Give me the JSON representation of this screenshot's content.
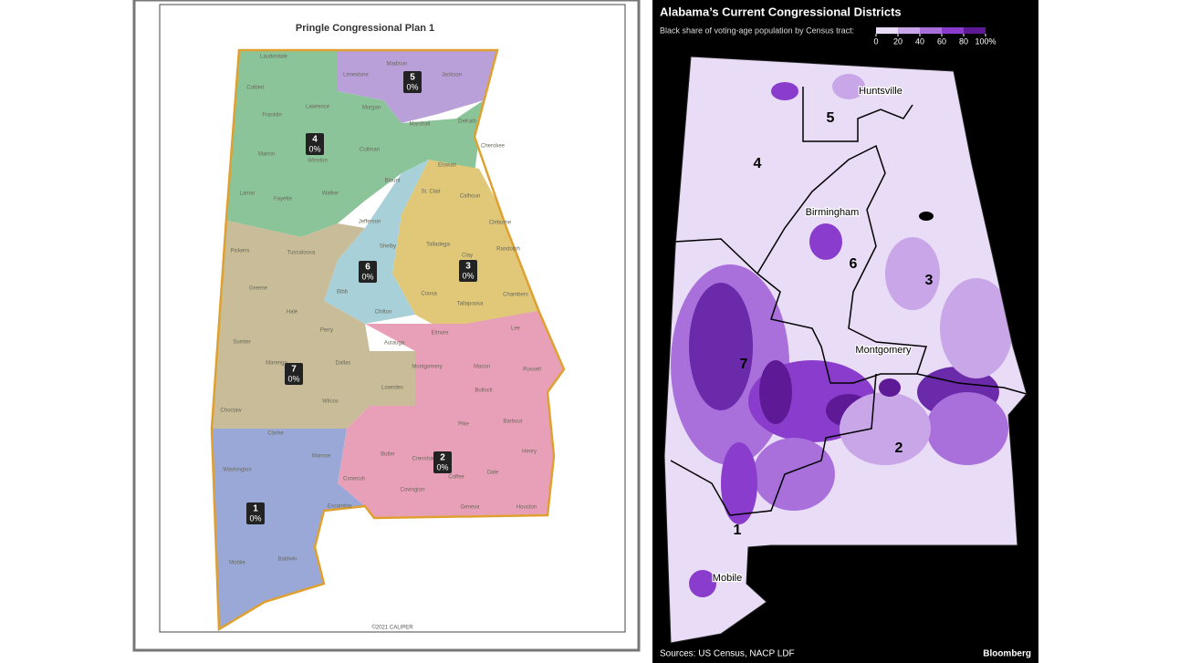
{
  "left_map": {
    "title": "Pringle Congressional Plan 1",
    "counties": [
      "Lauderdale",
      "Limestone",
      "Madison",
      "Jackson",
      "Colbert",
      "Lawrence",
      "Morgan",
      "Franklin",
      "Marshall",
      "DeKalb",
      "Marion",
      "Winston",
      "Cullman",
      "Cherokee",
      "Etowah",
      "Lamar",
      "Fayette",
      "Walker",
      "Blount",
      "St. Clair",
      "Calhoun",
      "Jefferson",
      "Cleburne",
      "Tuscaloosa",
      "Pickens",
      "Talladega",
      "Clay",
      "Randolph",
      "Shelby",
      "Greene",
      "Hale",
      "Bibb",
      "Coosa",
      "Tallapoosa",
      "Chambers",
      "Chilton",
      "Sumter",
      "Perry",
      "Autauga",
      "Elmore",
      "Lee",
      "Marengo",
      "Dallas",
      "Montgomery",
      "Macon",
      "Russell",
      "Choctaw",
      "Lowndes",
      "Bullock",
      "Wilcox",
      "Pike",
      "Barbour",
      "Clarke",
      "Butler",
      "Crenshaw",
      "Monroe",
      "Henry",
      "Washington",
      "Coffee",
      "Dale",
      "Conecuh",
      "Covington",
      "Escambia",
      "Geneva",
      "Houston",
      "Mobile",
      "Baldwin"
    ],
    "districts": [
      {
        "number": "5",
        "share": "0%"
      },
      {
        "number": "4",
        "share": "0%"
      },
      {
        "number": "6",
        "share": "0%"
      },
      {
        "number": "3",
        "share": "0%"
      },
      {
        "number": "7",
        "share": "0%"
      },
      {
        "number": "2",
        "share": "0%"
      },
      {
        "number": "1",
        "share": "0%"
      }
    ],
    "credit": "©2021 CALIPER"
  },
  "right_map": {
    "title": "Alabama’s Current Congressional Districts",
    "legend": {
      "label": "Black share of voting-age population by Census tract:",
      "ticks": [
        0,
        20,
        40,
        60,
        80,
        {
          "value": 100,
          "label": "100%"
        }
      ],
      "colors": [
        "#e9dcf6",
        "#c9a6e8",
        "#a970dc",
        "#8a3ccc",
        "#5e1a96"
      ]
    },
    "cities": [
      "Huntsville",
      "Birmingham",
      "Montgomery",
      "Mobile"
    ],
    "districts": [
      "5",
      "4",
      "6",
      "3",
      "7",
      "2",
      "1"
    ],
    "source": "Sources: US Census, NACP LDF",
    "brand": "Bloomberg"
  }
}
